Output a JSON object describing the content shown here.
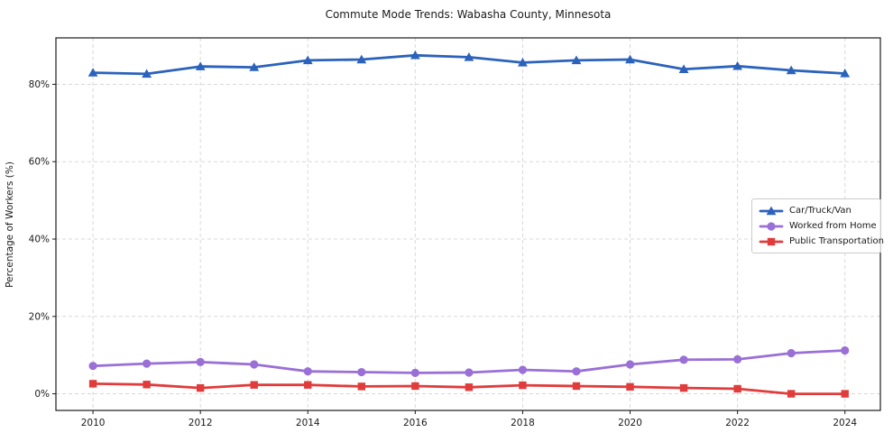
{
  "figure": {
    "title": "Commute Mode Trends: Wabasha County, Minnesota"
  },
  "chart_data": {
    "type": "line",
    "title": "Commute Mode Trends: Wabasha County, Minnesota",
    "xlabel": "",
    "ylabel": "Percentage of Workers (%)",
    "x": [
      2010,
      2011,
      2012,
      2013,
      2014,
      2015,
      2016,
      2017,
      2018,
      2019,
      2020,
      2021,
      2022,
      2023,
      2024
    ],
    "series": [
      {
        "name": "Car/Truck/Van",
        "color": "#2b62bc",
        "marker": "triangle",
        "values": [
          83.0,
          82.7,
          84.6,
          84.4,
          86.2,
          86.4,
          87.5,
          87.0,
          85.6,
          86.2,
          86.4,
          83.9,
          84.7,
          83.6,
          82.8
        ]
      },
      {
        "name": "Worked from Home",
        "color": "#9a6fd6",
        "marker": "circle",
        "values": [
          7.2,
          7.8,
          8.2,
          7.6,
          5.8,
          5.6,
          5.4,
          5.5,
          6.2,
          5.8,
          7.6,
          8.8,
          8.9,
          10.5,
          11.2
        ]
      },
      {
        "name": "Public Transportation",
        "color": "#e03c3c",
        "marker": "square",
        "values": [
          2.6,
          2.4,
          1.5,
          2.3,
          2.3,
          1.9,
          2.0,
          1.7,
          2.2,
          2.0,
          1.8,
          1.5,
          1.3,
          0.0,
          0.0
        ]
      }
    ],
    "xticks": [
      2010,
      2012,
      2014,
      2016,
      2018,
      2020,
      2022,
      2024
    ],
    "xtick_labels": [
      "2010",
      "2012",
      "2014",
      "2016",
      "2018",
      "2020",
      "2022",
      "2024"
    ],
    "yticks": [
      0,
      20,
      40,
      60,
      80
    ],
    "ytick_labels": [
      "0%",
      "20%",
      "40%",
      "60%",
      "80%"
    ],
    "xlim": [
      2009.31,
      2024.66
    ],
    "ylim": [
      -4.3,
      92.0
    ],
    "grid": true,
    "grid_style": "dashed",
    "legend_position": "center right",
    "colors": {
      "axis": "#1a1a1a",
      "grid": "#d8d8d8",
      "background": "#ffffff"
    }
  }
}
